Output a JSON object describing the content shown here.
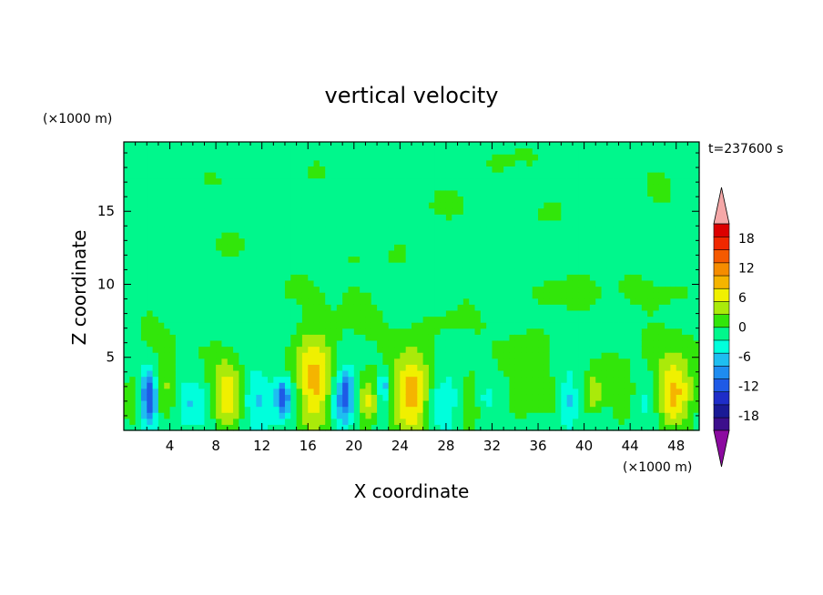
{
  "chart_data": {
    "type": "heatmap",
    "title": "vertical velocity",
    "xlabel": "X coordinate",
    "ylabel": "Z coordinate",
    "x_unit": "(×1000 m)",
    "y_unit": "(×1000 m)",
    "time_label": "t=237600 s",
    "xlim": [
      0,
      50
    ],
    "ylim": [
      0,
      19.75
    ],
    "x_ticks": [
      4,
      8,
      12,
      16,
      20,
      24,
      28,
      32,
      36,
      40,
      44,
      48
    ],
    "y_ticks": [
      5,
      10,
      15
    ],
    "colorbar": {
      "levels": [
        -21,
        -18,
        -15,
        -12,
        -9,
        -6,
        -3,
        0,
        3,
        6,
        9,
        12,
        15,
        18,
        21
      ],
      "tick_labels": [
        18,
        12,
        6,
        0,
        -6,
        -12,
        -18
      ],
      "colors": [
        "#3c0f8c",
        "#1a1a96",
        "#1e2dc8",
        "#1e5ae6",
        "#1e8cf0",
        "#1ebef0",
        "#00ffdc",
        "#00f78c",
        "#32e60a",
        "#aaea0a",
        "#f0f000",
        "#f5b400",
        "#f58c00",
        "#f55a00",
        "#f02800",
        "#dc0000"
      ],
      "under_color": "#8c0aa0",
      "over_color": "#f5a8a8"
    },
    "features": [
      {
        "x": 2.2,
        "z": 2.3,
        "sx": 0.5,
        "sz": 1.3,
        "w": -16
      },
      {
        "x": 1.0,
        "z": 2.0,
        "sx": 0.7,
        "sz": 1.4,
        "w": 4
      },
      {
        "x": 3.6,
        "z": 2.6,
        "sx": 0.9,
        "sz": 1.5,
        "w": 5
      },
      {
        "x": 5.5,
        "z": 2.0,
        "sx": 1.1,
        "sz": 1.1,
        "w": -4
      },
      {
        "x": 9.0,
        "z": 2.4,
        "sx": 1.0,
        "sz": 1.7,
        "w": 10
      },
      {
        "x": 11.5,
        "z": 2.2,
        "sx": 1.0,
        "sz": 1.4,
        "w": -5
      },
      {
        "x": 13.8,
        "z": 2.3,
        "sx": 0.4,
        "sz": 0.9,
        "w": -12
      },
      {
        "x": 14.6,
        "z": 2.1,
        "sx": 0.8,
        "sz": 1.2,
        "w": -4
      },
      {
        "x": 16.5,
        "z": 3.0,
        "sx": 1.3,
        "sz": 2.4,
        "w": 12
      },
      {
        "x": 18.4,
        "z": 2.0,
        "sx": 0.6,
        "sz": 1.5,
        "w": -6
      },
      {
        "x": 19.3,
        "z": 2.4,
        "sx": 0.45,
        "sz": 1.2,
        "w": -13
      },
      {
        "x": 21.2,
        "z": 2.0,
        "sx": 0.6,
        "sz": 1.3,
        "w": 8
      },
      {
        "x": 22.6,
        "z": 3.0,
        "sx": 0.4,
        "sz": 0.8,
        "w": -8
      },
      {
        "x": 25.0,
        "z": 2.4,
        "sx": 1.2,
        "sz": 2.0,
        "w": 13
      },
      {
        "x": 27.6,
        "z": 2.1,
        "sx": 1.0,
        "sz": 1.4,
        "w": -5
      },
      {
        "x": 30.2,
        "z": 2.0,
        "sx": 0.6,
        "sz": 1.6,
        "w": 6
      },
      {
        "x": 31.2,
        "z": 2.5,
        "sx": 1.0,
        "sz": 1.2,
        "w": -3
      },
      {
        "x": 35.0,
        "z": 2.0,
        "sx": 2.0,
        "sz": 1.4,
        "w": 3
      },
      {
        "x": 38.6,
        "z": 2.0,
        "sx": 0.5,
        "sz": 1.3,
        "w": -6
      },
      {
        "x": 40.8,
        "z": 2.6,
        "sx": 0.6,
        "sz": 1.0,
        "w": 7
      },
      {
        "x": 43.6,
        "z": 2.2,
        "sx": 1.2,
        "sz": 1.4,
        "w": 4
      },
      {
        "x": 45.5,
        "z": 2.2,
        "sx": 0.9,
        "sz": 1.3,
        "w": -4
      },
      {
        "x": 47.8,
        "z": 2.6,
        "sx": 1.2,
        "sz": 1.8,
        "w": 11
      },
      {
        "x": 7.5,
        "z": 17.0,
        "sx": 2.0,
        "sz": 0.9,
        "w": 2
      },
      {
        "x": 16.5,
        "z": 17.5,
        "sx": 1.5,
        "sz": 1.0,
        "w": 2
      },
      {
        "x": 34.0,
        "z": 18.5,
        "sx": 3.0,
        "sz": 1.3,
        "w": 2
      },
      {
        "x": 46.0,
        "z": 17.0,
        "sx": 2.0,
        "sz": 1.4,
        "w": 2
      },
      {
        "x": 27.0,
        "z": 15.5,
        "sx": 4.0,
        "sz": 1.0,
        "w": 2
      },
      {
        "x": 10.0,
        "z": 12.8,
        "sx": 3.0,
        "sz": 1.1,
        "w": 2
      },
      {
        "x": 21.0,
        "z": 12.0,
        "sx": 2.5,
        "sz": 1.0,
        "w": 2
      },
      {
        "x": 36.0,
        "z": 14.8,
        "sx": 2.0,
        "sz": 0.9,
        "w": 2
      },
      {
        "x": 44.0,
        "z": 9.5,
        "sx": 4.5,
        "sz": 1.0,
        "w": 2
      },
      {
        "x": 15.0,
        "z": 9.5,
        "sx": 2.5,
        "sz": 0.9,
        "w": 2
      },
      {
        "x": 38.0,
        "z": 9.5,
        "sx": 2.0,
        "sz": 0.8,
        "w": 2
      },
      {
        "x": 3.0,
        "z": 6.5,
        "sx": 2.0,
        "sz": 1.2,
        "w": 2
      },
      {
        "x": 21.0,
        "z": 7.5,
        "sx": 3.0,
        "sz": 1.3,
        "w": 2
      },
      {
        "x": 29.0,
        "z": 7.5,
        "sx": 2.0,
        "sz": 1.0,
        "w": 2
      },
      {
        "x": 35.0,
        "z": 6.0,
        "sx": 2.0,
        "sz": 1.0,
        "w": 2
      },
      {
        "x": 47.0,
        "z": 6.0,
        "sx": 2.0,
        "sz": 1.2,
        "w": 2
      }
    ],
    "background_field": [
      {
        "z": 4.5,
        "sz": 1.5,
        "w": 1
      },
      {
        "z": 10.5,
        "sz": 2.5,
        "w": 0.5
      }
    ]
  }
}
